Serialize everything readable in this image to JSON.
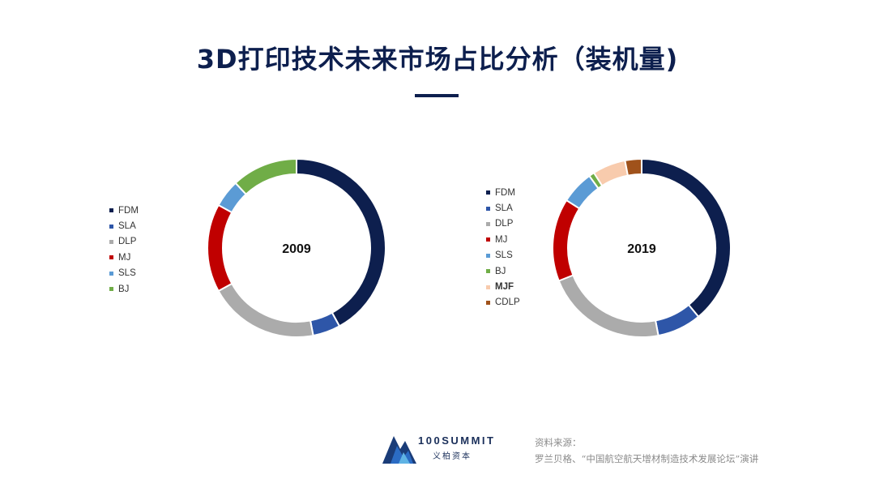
{
  "title": "3D打印技术未来市场占比分析（装机量)",
  "chart_data": [
    {
      "type": "pie",
      "center_label": "2009",
      "categories": [
        "FDM",
        "SLA",
        "DLP",
        "MJ",
        "SLS",
        "BJ"
      ],
      "values": [
        42,
        5,
        20,
        16,
        5,
        12
      ],
      "colors": [
        "#0d1f4e",
        "#2e56a8",
        "#ababab",
        "#c00000",
        "#5b9bd5",
        "#70ad47"
      ]
    },
    {
      "type": "pie",
      "center_label": "2019",
      "categories": [
        "FDM",
        "SLA",
        "DLP",
        "MJ",
        "SLS",
        "BJ",
        "MJF",
        "CDLP"
      ],
      "values": [
        39,
        8,
        22,
        15,
        6,
        1,
        6,
        3
      ],
      "colors": [
        "#0d1f4e",
        "#2e56a8",
        "#ababab",
        "#c00000",
        "#5b9bd5",
        "#70ad47",
        "#f8cbad",
        "#a0521b"
      ],
      "bold_categories": [
        "MJF"
      ]
    }
  ],
  "logo": {
    "name": "100SUMMIT",
    "sub": "义柏资本"
  },
  "source": {
    "label": "资料来源：",
    "text": "罗兰贝格、“中国航空航天增材制造技术发展论坛”演讲"
  }
}
